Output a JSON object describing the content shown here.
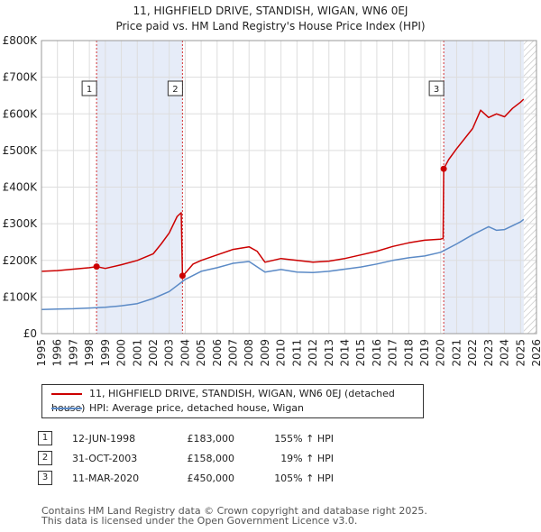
{
  "title_line1": "11, HIGHFIELD DRIVE, STANDISH, WIGAN, WN6 0EJ",
  "title_line2": "Price paid vs. HM Land Registry's House Price Index (HPI)",
  "legend": {
    "property": "11, HIGHFIELD DRIVE, STANDISH, WIGAN, WN6 0EJ (detached house)",
    "hpi": "HPI: Average price, detached house, Wigan"
  },
  "colors": {
    "property": "#cc0000",
    "hpi": "#5b8ac6",
    "shade": "#e6ecf8",
    "grid": "#dddddd",
    "hatch": "#c8c8c8"
  },
  "sales": [
    {
      "num": "1",
      "date": "12-JUN-1998",
      "price": "£183,000",
      "hpi": "155% ↑ HPI"
    },
    {
      "num": "2",
      "date": "31-OCT-2003",
      "price": "£158,000",
      "hpi": "19% ↑ HPI"
    },
    {
      "num": "3",
      "date": "11-MAR-2020",
      "price": "£450,000",
      "hpi": "105% ↑ HPI"
    }
  ],
  "footer_line1": "Contains HM Land Registry data © Crown copyright and database right 2025.",
  "footer_line2": "This data is licensed under the Open Government Licence v3.0.",
  "chart_data": {
    "type": "line",
    "title": "11, HIGHFIELD DRIVE, STANDISH, WIGAN, WN6 0EJ — Price paid vs. HM Land Registry's House Price Index (HPI)",
    "xlabel": "",
    "ylabel": "",
    "xlim": [
      1995,
      2026
    ],
    "ylim": [
      0,
      800000
    ],
    "x_ticks": [
      1995,
      1996,
      1997,
      1998,
      1999,
      2000,
      2001,
      2002,
      2003,
      2004,
      2005,
      2006,
      2007,
      2008,
      2009,
      2010,
      2011,
      2012,
      2013,
      2014,
      2015,
      2016,
      2017,
      2018,
      2019,
      2020,
      2021,
      2022,
      2023,
      2024,
      2025,
      2026
    ],
    "y_ticks": [
      0,
      100000,
      200000,
      300000,
      400000,
      500000,
      600000,
      700000,
      800000
    ],
    "y_tick_labels": [
      "£0",
      "£100K",
      "£200K",
      "£300K",
      "£400K",
      "£500K",
      "£600K",
      "£700K",
      "£800K"
    ],
    "shaded_periods": [
      [
        1998.45,
        2003.83
      ],
      [
        2020.19,
        2025.2
      ]
    ],
    "hatched_from": 2025.2,
    "sale_markers": [
      {
        "label": "1",
        "x": 1998.45,
        "y": 183000
      },
      {
        "label": "2",
        "x": 2003.83,
        "y": 158000
      },
      {
        "label": "3",
        "x": 2020.19,
        "y": 450000
      }
    ],
    "series": [
      {
        "name": "11, HIGHFIELD DRIVE, STANDISH, WIGAN, WN6 0EJ (detached house)",
        "x": [
          1995,
          1996,
          1997,
          1998,
          1998.45,
          1999,
          2000,
          2001,
          2002,
          2002.5,
          2003,
          2003.5,
          2003.75,
          2003.83,
          2004,
          2004.5,
          2005,
          2006,
          2007,
          2008,
          2008.5,
          2009,
          2010,
          2011,
          2012,
          2013,
          2014,
          2015,
          2016,
          2017,
          2018,
          2019,
          2020,
          2020.15,
          2020.19,
          2020.5,
          2021,
          2022,
          2022.5,
          2023,
          2023.5,
          2024,
          2024.5,
          2025,
          2025.2
        ],
        "y": [
          170000,
          172000,
          176000,
          180000,
          183000,
          178000,
          188000,
          200000,
          218000,
          245000,
          275000,
          320000,
          330000,
          158000,
          165000,
          190000,
          200000,
          215000,
          230000,
          237000,
          225000,
          195000,
          205000,
          200000,
          195000,
          198000,
          205000,
          215000,
          225000,
          238000,
          248000,
          255000,
          258000,
          260000,
          450000,
          475000,
          505000,
          560000,
          610000,
          590000,
          600000,
          592000,
          615000,
          632000,
          640000
        ]
      },
      {
        "name": "HPI: Average price, detached house, Wigan",
        "x": [
          1995,
          1996,
          1997,
          1998,
          1999,
          2000,
          2001,
          2002,
          2003,
          2004,
          2005,
          2006,
          2007,
          2008,
          2009,
          2010,
          2011,
          2012,
          2013,
          2014,
          2015,
          2016,
          2017,
          2018,
          2019,
          2020,
          2021,
          2022,
          2023,
          2023.5,
          2024,
          2025,
          2025.2
        ],
        "y": [
          66000,
          67000,
          68000,
          70000,
          72000,
          76000,
          82000,
          96000,
          115000,
          148000,
          170000,
          180000,
          192000,
          197000,
          168000,
          175000,
          168000,
          167000,
          170000,
          176000,
          182000,
          190000,
          200000,
          207000,
          212000,
          222000,
          245000,
          270000,
          292000,
          282000,
          284000,
          305000,
          312000
        ]
      }
    ]
  }
}
